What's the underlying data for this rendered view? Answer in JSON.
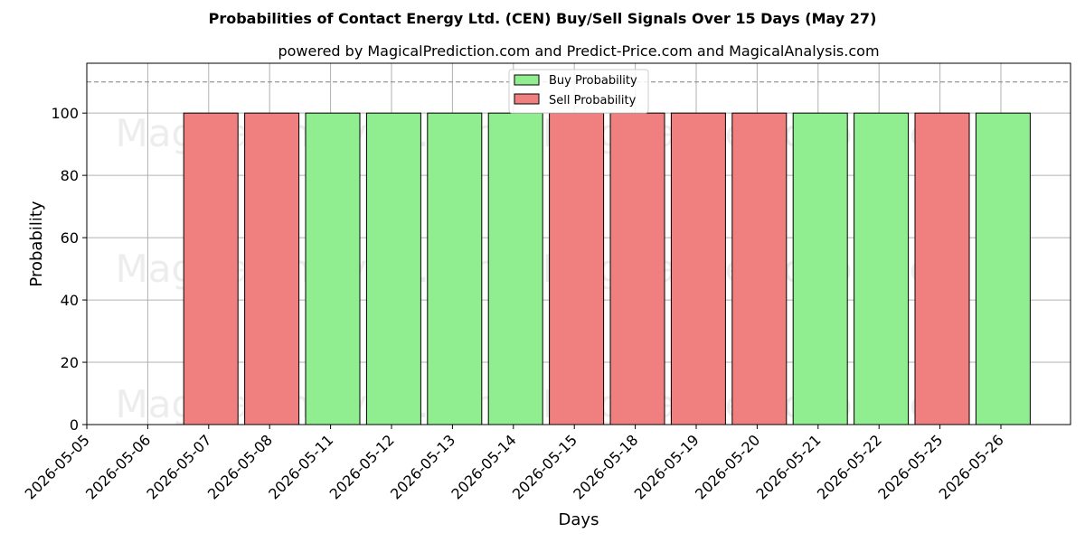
{
  "chart_data": {
    "type": "bar",
    "title": "Probabilities of Contact Energy Ltd. (CEN) Buy/Sell Signals Over 15 Days (May 27)",
    "subtitle": "powered by MagicalPrediction.com and Predict-Price.com and MagicalAnalysis.com",
    "xlabel": "Days",
    "ylabel": "Probability",
    "ylim": [
      0,
      116
    ],
    "yticks": [
      0,
      20,
      40,
      60,
      80,
      100
    ],
    "reference_line": 110,
    "grid": true,
    "legend_position": "top-center",
    "categories": [
      "2026-05-05",
      "2026-05-06",
      "2026-05-07",
      "2026-05-08",
      "2026-05-11",
      "2026-05-12",
      "2026-05-13",
      "2026-05-14",
      "2026-05-15",
      "2026-05-18",
      "2026-05-19",
      "2026-05-20",
      "2026-05-21",
      "2026-05-22",
      "2026-05-25",
      "2026-05-26"
    ],
    "series": [
      {
        "name": "Buy Probability",
        "color": "#90ee90",
        "values": [
          null,
          null,
          0,
          0,
          100,
          100,
          100,
          100,
          0,
          0,
          0,
          0,
          100,
          100,
          0,
          100
        ]
      },
      {
        "name": "Sell Probability",
        "color": "#f08080",
        "values": [
          null,
          null,
          100,
          100,
          0,
          0,
          0,
          0,
          100,
          100,
          100,
          100,
          0,
          0,
          100,
          0
        ]
      }
    ],
    "watermarks": [
      "MagicalAnalysis.com",
      "MagicalPrediction.com",
      "MagicalAnalysis.com",
      "MagicalPrediction.com",
      "MagicalAnalysis.com",
      "MagicalPrediction.com"
    ]
  }
}
